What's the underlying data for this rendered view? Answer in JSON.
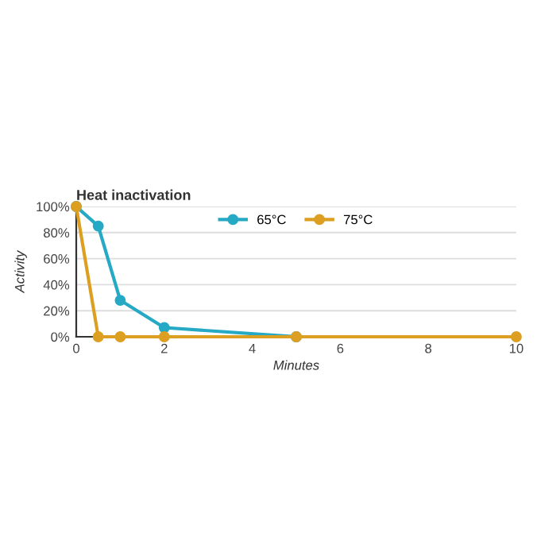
{
  "chart_data": {
    "type": "line",
    "title": "Heat inactivation",
    "xlabel": "Minutes",
    "ylabel": "Activity",
    "series": [
      {
        "name": "65°C",
        "color": "#26a9c4",
        "x": [
          0,
          0.5,
          1,
          2,
          5
        ],
        "values": [
          100,
          85,
          28,
          7,
          0
        ]
      },
      {
        "name": "75°C",
        "color": "#dd9f22",
        "x": [
          0,
          0.5,
          1,
          2,
          5,
          10
        ],
        "values": [
          100,
          0,
          0,
          0,
          0,
          0
        ]
      }
    ],
    "xlim": [
      0,
      10
    ],
    "xticks": [
      0,
      2,
      4,
      6,
      8,
      10
    ],
    "ylim": [
      0,
      100
    ],
    "yticks": [
      {
        "value": 0,
        "label": "0%"
      },
      {
        "value": 20,
        "label": "20%"
      },
      {
        "value": 40,
        "label": "40%"
      },
      {
        "value": 60,
        "label": "60%"
      },
      {
        "value": 80,
        "label": "80%"
      },
      {
        "value": 100,
        "label": "100%"
      }
    ],
    "grid": "y",
    "legend": "top",
    "marker": "circle",
    "line_style": "solid"
  }
}
